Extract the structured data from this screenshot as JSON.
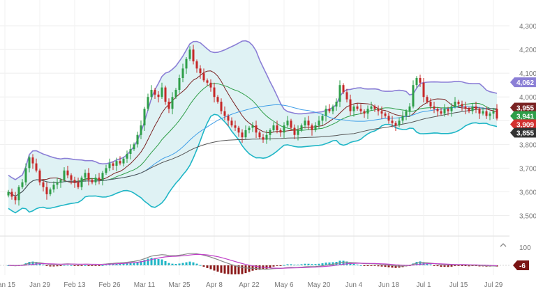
{
  "chart_data": {
    "type": "candlestick",
    "price_ylim": [
      3440,
      4350
    ],
    "y_ticks": [
      {
        "value": 4300,
        "label": "4,300"
      },
      {
        "value": 4200,
        "label": "4,200"
      },
      {
        "value": 4100,
        "label": "4,100"
      },
      {
        "value": 4000,
        "label": "4,000"
      },
      {
        "value": 3900,
        "label": "3,900"
      },
      {
        "value": 3800,
        "label": "3,800"
      },
      {
        "value": 3700,
        "label": "3,700"
      },
      {
        "value": 3600,
        "label": "3,600"
      },
      {
        "value": 3500,
        "label": "3,500"
      }
    ],
    "x_ticks": [
      {
        "index": -1,
        "label": "Jan 15"
      },
      {
        "index": 9,
        "label": "Jan 29"
      },
      {
        "index": 19,
        "label": "Feb 13"
      },
      {
        "index": 29,
        "label": "Feb 26"
      },
      {
        "index": 39,
        "label": "Mar 11"
      },
      {
        "index": 49,
        "label": "Mar 25"
      },
      {
        "index": 59,
        "label": "Apr 8"
      },
      {
        "index": 69,
        "label": "Apr 22"
      },
      {
        "index": 79,
        "label": "May 6"
      },
      {
        "index": 89,
        "label": "May 20"
      },
      {
        "index": 99,
        "label": "Jun 4"
      },
      {
        "index": 109,
        "label": "Jun 18"
      },
      {
        "index": 119,
        "label": "Jul 1"
      },
      {
        "index": 129,
        "label": "Jul 15"
      },
      {
        "index": 139,
        "label": "Jul 29"
      }
    ],
    "closes": [
      3600,
      3580,
      3565,
      3620,
      3640,
      3700,
      3745,
      3720,
      3690,
      3640,
      3620,
      3590,
      3610,
      3630,
      3640,
      3650,
      3690,
      3670,
      3650,
      3640,
      3620,
      3660,
      3680,
      3650,
      3640,
      3660,
      3650,
      3680,
      3700,
      3720,
      3710,
      3730,
      3720,
      3740,
      3760,
      3780,
      3800,
      3840,
      3880,
      3950,
      4000,
      4030,
      4010,
      4000,
      4040,
      3980,
      3950,
      4000,
      4030,
      4080,
      4120,
      4160,
      4200,
      4150,
      4120,
      4100,
      4070,
      4060,
      4040,
      4000,
      3980,
      3940,
      3920,
      3900,
      3880,
      3870,
      3850,
      3830,
      3860,
      3870,
      3880,
      3850,
      3830,
      3820,
      3840,
      3860,
      3880,
      3860,
      3850,
      3880,
      3900,
      3870,
      3840,
      3860,
      3880,
      3900,
      3880,
      3860,
      3880,
      3900,
      3920,
      3950,
      3940,
      3960,
      3980,
      4050,
      4020,
      3990,
      3940,
      3960,
      3950,
      3940,
      3930,
      3950,
      3960,
      3950,
      3940,
      3930,
      3920,
      3900,
      3890,
      3880,
      3900,
      3920,
      3940,
      3960,
      4050,
      4080,
      4060,
      4000,
      3980,
      3960,
      3950,
      3940,
      3930,
      3950,
      3940,
      3960,
      3980,
      3970,
      3960,
      3950,
      3940,
      3960,
      3950,
      3930,
      3940,
      3920,
      3930,
      3940,
      3909
    ],
    "last_bar_open": 3950,
    "overlays": [
      {
        "name": "bollinger_upper",
        "color": "#8b7fd6"
      },
      {
        "name": "bollinger_lower",
        "color": "#1fb6c6"
      },
      {
        "name": "sma_short",
        "color": "#7a2323"
      },
      {
        "name": "sma_mid",
        "color": "#2e9e48"
      },
      {
        "name": "sma_long",
        "color": "#3f9ee8"
      },
      {
        "name": "sma_xlong",
        "color": "#555555"
      }
    ],
    "price_tags": [
      {
        "label": "4,062",
        "value": 4062,
        "color": "#8b7fd6"
      },
      {
        "label": "3,955",
        "value": 3955,
        "color": "#7a2323"
      },
      {
        "label": "3,941",
        "value": 3941,
        "color": "#2e9e48"
      },
      {
        "label": "3,909",
        "value": 3909,
        "color": "#d32f2f"
      },
      {
        "label": "3,855",
        "value": 3855,
        "color": "#333333"
      }
    ],
    "indicator": {
      "level_label": "100",
      "value_label": "-6",
      "value_color": "#7a1414"
    },
    "up_color": "#2e9e48",
    "down_color": "#c62828",
    "band_fill": "#dff2f4"
  }
}
